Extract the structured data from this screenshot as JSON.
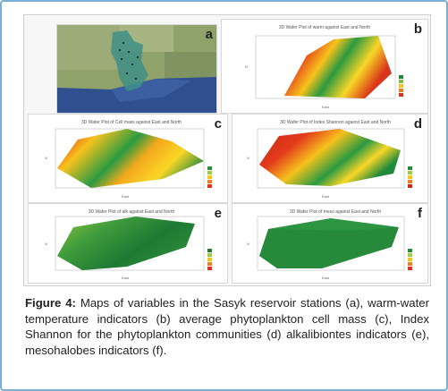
{
  "figure": {
    "panels": [
      {
        "letter": "a"
      },
      {
        "letter": "b",
        "title": "3D Wafer Plot of warm against East and North"
      },
      {
        "letter": "c",
        "title": "3D Wafer Plot of Cell mass against East and North"
      },
      {
        "letter": "d",
        "title": "3D Wafer Plot of Index Shannon against East and North"
      },
      {
        "letter": "e",
        "title": "3D Wafer Plot of alk against East and North"
      },
      {
        "letter": "f",
        "title": "3D Wafer Plot of meso against East and North"
      }
    ],
    "axis": {
      "x": "East",
      "y": "N"
    }
  },
  "caption": {
    "lead": "Figure 4:",
    "text": " Maps of variables in the Sasyk reservoir stations (a), warm-water temperature indicators (b) average phytoplankton cell mass (c), Index Shannon for the phytoplankton communities (d) alkalibiontes indicators (e), mesohalobes indicators (f)."
  }
}
